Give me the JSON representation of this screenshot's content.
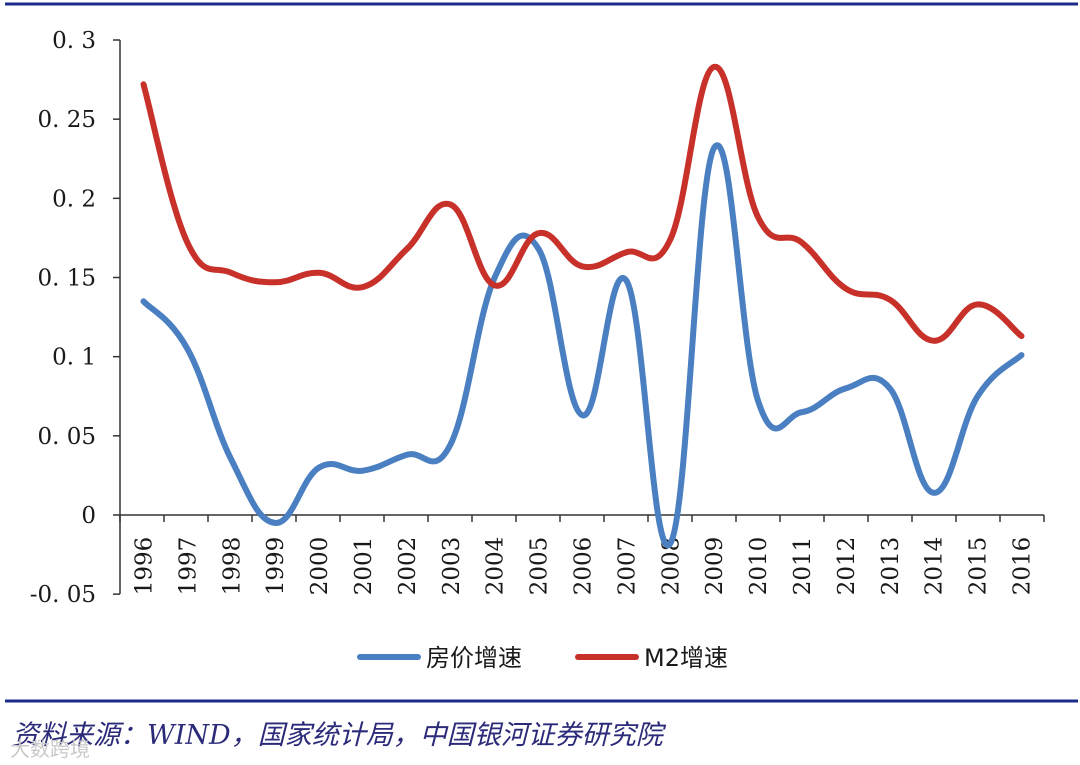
{
  "chart_data": {
    "type": "line",
    "x": [
      "1996",
      "1997",
      "1998",
      "1999",
      "2000",
      "2001",
      "2002",
      "2003",
      "2004",
      "2005",
      "2006",
      "2007",
      "2008",
      "2009",
      "2010",
      "2011",
      "2012",
      "2013",
      "2014",
      "2015",
      "2016"
    ],
    "series": [
      {
        "name": "房价增速",
        "color": "#4a7fc1",
        "values": [
          0.135,
          0.105,
          0.035,
          -0.005,
          0.03,
          0.028,
          0.038,
          0.045,
          0.15,
          0.168,
          0.063,
          0.148,
          -0.018,
          0.232,
          0.072,
          0.065,
          0.08,
          0.08,
          0.014,
          0.075,
          0.101
        ]
      },
      {
        "name": "M2增速",
        "color": "#c8302a",
        "values": [
          0.272,
          0.172,
          0.153,
          0.147,
          0.153,
          0.144,
          0.168,
          0.196,
          0.145,
          0.178,
          0.157,
          0.166,
          0.174,
          0.283,
          0.188,
          0.172,
          0.143,
          0.136,
          0.11,
          0.133,
          0.113
        ]
      }
    ],
    "y_ticks": [
      "0. 3",
      "0. 25",
      "0. 2",
      "0. 15",
      "0. 1",
      "0. 05",
      "0",
      "-0. 05"
    ],
    "ylim": [
      -0.05,
      0.3
    ],
    "grid": false,
    "legend_position": "bottom"
  },
  "source_note": "资料来源：WIND，国家统计局，中国银河证券研究院",
  "watermark": "大数跨境"
}
